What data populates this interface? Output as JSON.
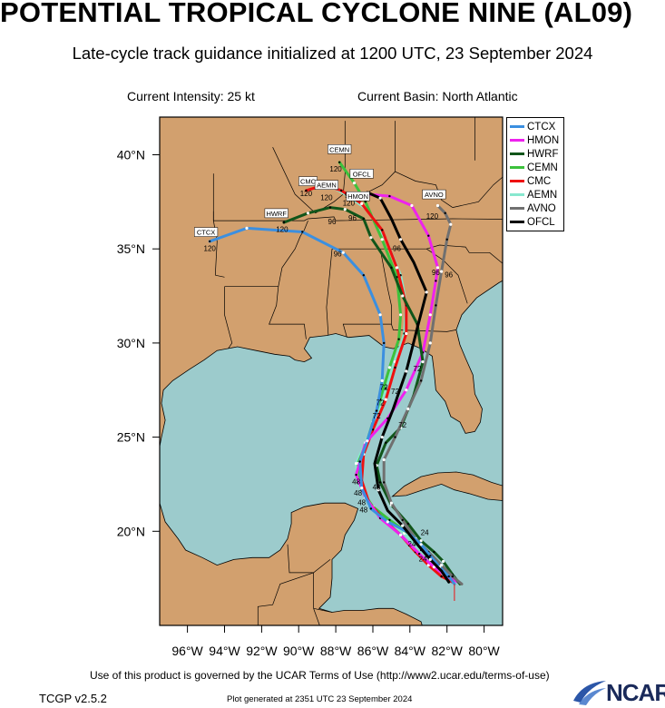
{
  "header": {
    "title": "POTENTIAL TROPICAL CYCLONE NINE (AL09)",
    "subtitle": "Late-cycle track guidance initialized at 1200 UTC, 23 September 2024",
    "intensity": "Current Intensity: 25 kt",
    "basin": "Current Basin: North Atlantic"
  },
  "map": {
    "lon_range": [
      -97.5,
      -79
    ],
    "lat_range": [
      15,
      42
    ],
    "lon_ticks": [
      "96°W",
      "94°W",
      "92°W",
      "90°W",
      "88°W",
      "86°W",
      "84°W",
      "82°W",
      "80°W"
    ],
    "lat_ticks": [
      "20°N",
      "25°N",
      "30°N",
      "35°N",
      "40°N"
    ],
    "colors": {
      "land": "#d2a06e",
      "water": "#9ccbcc",
      "border": "#000000"
    }
  },
  "legend": [
    {
      "name": "CTCX",
      "color": "#3b8fe0"
    },
    {
      "name": "HMON",
      "color": "#ee22ee"
    },
    {
      "name": "HWRF",
      "color": "#10551a"
    },
    {
      "name": "CEMN",
      "color": "#3cc23c"
    },
    {
      "name": "CMC",
      "color": "#ee1111"
    },
    {
      "name": "AEMN",
      "color": "#88e8cf"
    },
    {
      "name": "AVNO",
      "color": "#707070"
    },
    {
      "name": "OFCL",
      "color": "#000000"
    }
  ],
  "tracks": {
    "CTCX": [
      [
        -81.6,
        17.2
      ],
      [
        -81.9,
        17.6
      ],
      [
        -82.4,
        18.1
      ],
      [
        -82.9,
        18.7
      ],
      [
        -83.4,
        19.3
      ],
      [
        -84.2,
        20.0
      ],
      [
        -85.2,
        20.5
      ],
      [
        -86.1,
        21.2
      ],
      [
        -86.6,
        22.3
      ],
      [
        -86.7,
        23.7
      ],
      [
        -86.3,
        24.8
      ],
      [
        -85.8,
        26.4
      ],
      [
        -85.5,
        28.0
      ],
      [
        -85.4,
        30.0
      ],
      [
        -85.6,
        31.5
      ],
      [
        -86.5,
        33.6
      ],
      [
        -87.6,
        34.8
      ],
      [
        -89.8,
        35.9
      ],
      [
        -92.8,
        36.1
      ],
      [
        -94.8,
        35.4
      ]
    ],
    "HMON": [
      [
        -81.4,
        17.3
      ],
      [
        -82.0,
        17.6
      ],
      [
        -82.7,
        18.1
      ],
      [
        -83.5,
        18.8
      ],
      [
        -84.5,
        19.8
      ],
      [
        -85.6,
        20.7
      ],
      [
        -86.4,
        21.8
      ],
      [
        -86.9,
        23.0
      ],
      [
        -86.4,
        24.7
      ],
      [
        -85.2,
        26.0
      ],
      [
        -84.2,
        27.5
      ],
      [
        -83.3,
        29.5
      ],
      [
        -82.9,
        31.5
      ],
      [
        -82.6,
        33.3
      ],
      [
        -82.5,
        34.0
      ],
      [
        -83.0,
        35.7
      ],
      [
        -83.9,
        37.3
      ],
      [
        -85.1,
        37.8
      ],
      [
        -86.3,
        37.9
      ]
    ],
    "HWRF": [
      [
        -81.3,
        17.2
      ],
      [
        -81.7,
        17.7
      ],
      [
        -82.2,
        18.4
      ],
      [
        -82.7,
        18.9
      ],
      [
        -83.4,
        19.5
      ],
      [
        -84.1,
        20.4
      ],
      [
        -85.0,
        21.4
      ],
      [
        -85.6,
        22.6
      ],
      [
        -85.8,
        23.5
      ],
      [
        -85.3,
        24.7
      ],
      [
        -84.5,
        25.5
      ],
      [
        -83.8,
        27.2
      ],
      [
        -83.3,
        29.0
      ],
      [
        -83.6,
        31.0
      ],
      [
        -84.4,
        32.5
      ],
      [
        -85.0,
        34.0
      ],
      [
        -86.1,
        35.6
      ],
      [
        -86.5,
        36.6
      ],
      [
        -87.5,
        37.1
      ],
      [
        -88.3,
        37.2
      ],
      [
        -89.5,
        36.9
      ],
      [
        -90.8,
        36.4
      ]
    ],
    "CEMN": [
      [
        -81.6,
        17.5
      ],
      [
        -82.0,
        17.9
      ],
      [
        -82.6,
        18.4
      ],
      [
        -83.3,
        19.0
      ],
      [
        -84.1,
        19.9
      ],
      [
        -85.1,
        20.6
      ],
      [
        -86.0,
        21.3
      ],
      [
        -86.6,
        22.2
      ],
      [
        -86.8,
        23.6
      ],
      [
        -86.3,
        24.8
      ],
      [
        -86.0,
        25.8
      ],
      [
        -85.6,
        27.0
      ],
      [
        -85.1,
        28.7
      ],
      [
        -84.6,
        30.2
      ],
      [
        -84.5,
        31.5
      ],
      [
        -84.7,
        33.5
      ],
      [
        -85.5,
        35.5
      ],
      [
        -86.4,
        37.5
      ],
      [
        -87.0,
        38.5
      ],
      [
        -87.8,
        39.6
      ]
    ],
    "CMC": [
      [
        -81.7,
        17.3
      ],
      [
        -82.3,
        17.6
      ],
      [
        -83.0,
        18.2
      ],
      [
        -83.7,
        18.9
      ],
      [
        -84.5,
        19.8
      ],
      [
        -85.4,
        20.6
      ],
      [
        -86.2,
        21.5
      ],
      [
        -86.6,
        22.7
      ],
      [
        -86.5,
        24.1
      ],
      [
        -86.0,
        25.4
      ],
      [
        -85.3,
        27.0
      ],
      [
        -84.8,
        28.7
      ],
      [
        -84.2,
        30.5
      ],
      [
        -84.2,
        32.0
      ],
      [
        -84.7,
        34.0
      ],
      [
        -85.5,
        36.0
      ],
      [
        -86.6,
        37.4
      ],
      [
        -87.7,
        38.1
      ],
      [
        -88.6,
        38.4
      ],
      [
        -89.6,
        38.1
      ]
    ],
    "AEMN": [
      [
        -81.5,
        17.4
      ],
      [
        -82.0,
        17.8
      ],
      [
        -82.7,
        18.3
      ],
      [
        -83.4,
        19.0
      ],
      [
        -84.3,
        19.9
      ],
      [
        -85.3,
        20.6
      ],
      [
        -86.2,
        21.4
      ],
      [
        -86.8,
        22.6
      ],
      [
        -86.9,
        23.6
      ],
      [
        -86.4,
        24.7
      ],
      [
        -85.8,
        26.0
      ],
      [
        -85.3,
        27.6
      ],
      [
        -84.8,
        29.0
      ],
      [
        -84.3,
        30.5
      ],
      [
        -84.2,
        32.0
      ],
      [
        -84.5,
        33.6
      ],
      [
        -85.3,
        35.5
      ],
      [
        -86.2,
        37.0
      ],
      [
        -87.3,
        37.8
      ],
      [
        -88.4,
        38.4
      ],
      [
        -89.2,
        38.6
      ]
    ],
    "AVNO": [
      [
        -81.2,
        17.2
      ],
      [
        -81.7,
        17.6
      ],
      [
        -82.3,
        18.2
      ],
      [
        -83.0,
        18.9
      ],
      [
        -83.7,
        19.6
      ],
      [
        -84.4,
        20.6
      ],
      [
        -85.0,
        21.5
      ],
      [
        -85.4,
        22.6
      ],
      [
        -85.4,
        23.8
      ],
      [
        -84.8,
        25.0
      ],
      [
        -84.1,
        26.5
      ],
      [
        -83.4,
        28.0
      ],
      [
        -82.9,
        30.0
      ],
      [
        -82.6,
        32.0
      ],
      [
        -82.3,
        33.8
      ],
      [
        -82.0,
        35.5
      ],
      [
        -81.8,
        36.3
      ],
      [
        -82.1,
        36.9
      ],
      [
        -82.5,
        37.3
      ]
    ],
    "OFCL": [
      [
        -81.9,
        17.3
      ],
      [
        -82.3,
        17.9
      ],
      [
        -82.9,
        18.5
      ],
      [
        -83.6,
        19.3
      ],
      [
        -84.4,
        20.3
      ],
      [
        -85.2,
        21.1
      ],
      [
        -85.7,
        22.2
      ],
      [
        -85.9,
        23.6
      ],
      [
        -85.5,
        25.0
      ],
      [
        -84.9,
        26.5
      ],
      [
        -84.2,
        28.5
      ],
      [
        -83.6,
        30.8
      ],
      [
        -83.1,
        32.7
      ],
      [
        -83.8,
        34.3
      ],
      [
        -84.5,
        35.5
      ],
      [
        -85.0,
        36.6
      ],
      [
        -85.6,
        37.7
      ],
      [
        -86.3,
        38.0
      ]
    ]
  },
  "hour_labels": [
    {
      "text": "24",
      "lon": -83.9,
      "lat": 19.2
    },
    {
      "text": "24",
      "lon": -83.3,
      "lat": 18.4
    },
    {
      "text": "24",
      "lon": -83.2,
      "lat": 19.8
    },
    {
      "text": "48",
      "lon": -86.9,
      "lat": 22.5
    },
    {
      "text": "48",
      "lon": -86.8,
      "lat": 21.9
    },
    {
      "text": "48",
      "lon": -86.6,
      "lat": 21.4
    },
    {
      "text": "48",
      "lon": -86.5,
      "lat": 21.0
    },
    {
      "text": "48",
      "lon": -85.8,
      "lat": 22.2
    },
    {
      "text": "72",
      "lon": -85.4,
      "lat": 27.5
    },
    {
      "text": "72",
      "lon": -85.6,
      "lat": 26.7
    },
    {
      "text": "72",
      "lon": -85.8,
      "lat": 26.0
    },
    {
      "text": "72",
      "lon": -84.4,
      "lat": 25.5
    },
    {
      "text": "72",
      "lon": -84.8,
      "lat": 27.3
    },
    {
      "text": "72",
      "lon": -83.6,
      "lat": 28.5
    },
    {
      "text": "96",
      "lon": -87.9,
      "lat": 34.6
    },
    {
      "text": "96",
      "lon": -84.7,
      "lat": 34.9
    },
    {
      "text": "96",
      "lon": -87.1,
      "lat": 36.5
    },
    {
      "text": "96",
      "lon": -88.2,
      "lat": 36.3
    },
    {
      "text": "96",
      "lon": -82.6,
      "lat": 33.6
    },
    {
      "text": "96",
      "lon": -81.9,
      "lat": 33.5
    },
    {
      "text": "96",
      "lon": -87.3,
      "lat": 37.7
    },
    {
      "text": "120",
      "lon": -94.8,
      "lat": 34.9
    },
    {
      "text": "120",
      "lon": -90.9,
      "lat": 35.9
    },
    {
      "text": "120",
      "lon": -89.6,
      "lat": 37.8
    },
    {
      "text": "120",
      "lon": -88.5,
      "lat": 37.6
    },
    {
      "text": "120",
      "lon": -88.0,
      "lat": 39.1
    },
    {
      "text": "120",
      "lon": -87.3,
      "lat": 37.3
    },
    {
      "text": "120",
      "lon": -82.8,
      "lat": 36.6
    }
  ],
  "end_tags": [
    {
      "text": "CTCX",
      "lon": -95.0,
      "lat": 35.8
    },
    {
      "text": "HWRF",
      "lon": -91.2,
      "lat": 36.8
    },
    {
      "text": "CMC",
      "lon": -89.5,
      "lat": 38.5
    },
    {
      "text": "AEMN",
      "lon": -88.5,
      "lat": 38.3
    },
    {
      "text": "CEMN",
      "lon": -87.8,
      "lat": 40.2
    },
    {
      "text": "OFCL",
      "lon": -86.6,
      "lat": 38.9
    },
    {
      "text": "HMON",
      "lon": -86.8,
      "lat": 37.7
    },
    {
      "text": "AVNO",
      "lon": -82.7,
      "lat": 37.8
    }
  ],
  "footer": {
    "terms": "Use of this product is governed by the UCAR Terms of Use (http://www2.ucar.edu/terms-of-use)",
    "version": "TCGP v2.5.2",
    "generated": "Plot generated at 2351 UTC   23 September 2024",
    "logo": "NCAR"
  }
}
